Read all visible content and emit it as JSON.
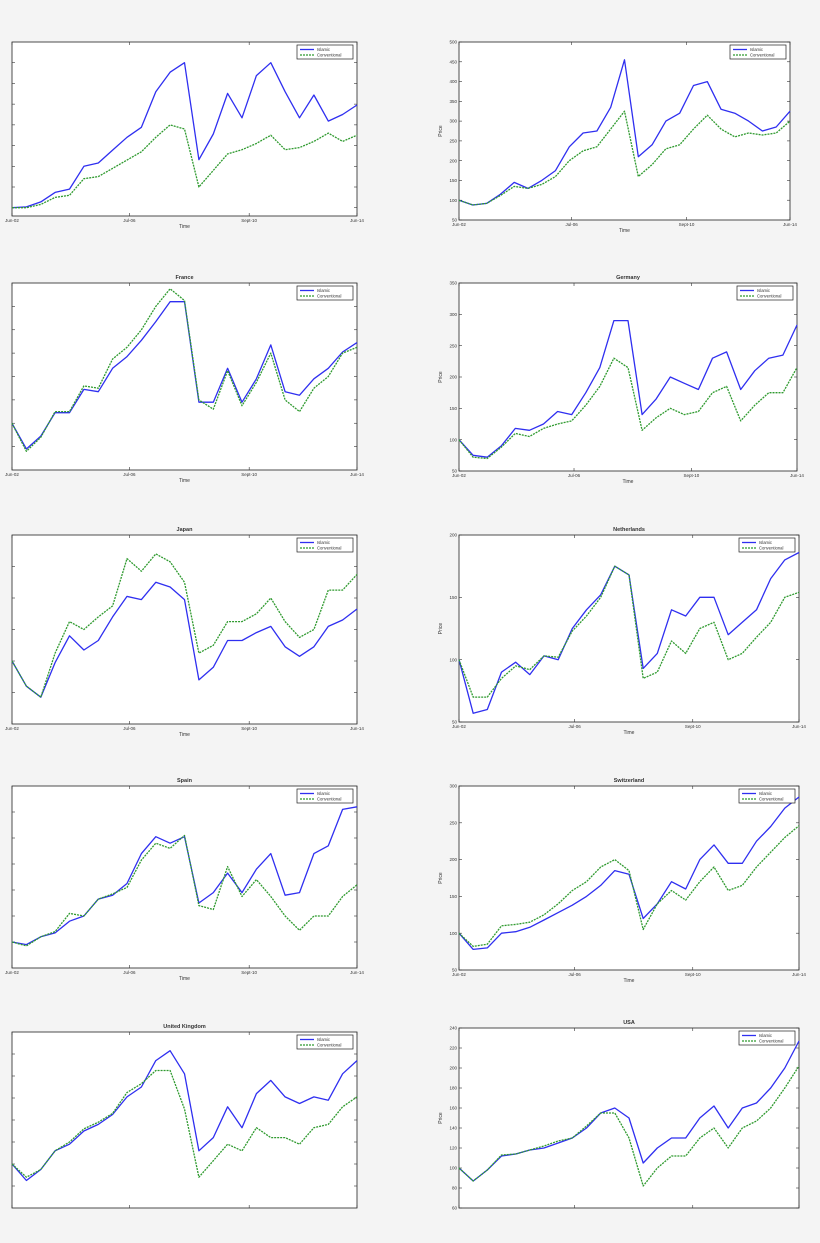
{
  "colors": {
    "islamic": "#2f2ff0",
    "conventional": "#2f9a2f",
    "background": "#f4f4f4",
    "plot": "#ffffff"
  },
  "chart_data": [
    {
      "type": "line",
      "title": "",
      "xlabel": "Time",
      "ylabel": "",
      "x": [
        "Jun-02",
        "Dec-02",
        "Jun-03",
        "Dec-03",
        "Jun-04",
        "Dec-04",
        "Jun-05",
        "Dec-05",
        "Jun-06",
        "Dec-06",
        "Jun-07",
        "Dec-07",
        "Jun-08",
        "Dec-08",
        "Jun-09",
        "Dec-09",
        "Jun-10",
        "Dec-10",
        "Jun-11",
        "Dec-11",
        "Jun-12",
        "Dec-12",
        "Jun-13",
        "Dec-13",
        "Jun-14"
      ],
      "xticks": [
        "Jun-02",
        "Jul-06",
        "Sept-10",
        "Jun-14"
      ],
      "xtick_labels_shown": true,
      "ylim": [
        80,
        500
      ],
      "yticks": [
        100,
        150,
        200,
        250,
        300,
        350,
        400,
        450
      ],
      "ytick_labels_shown": false,
      "legend": "top-right",
      "series": [
        {
          "name": "Islamic",
          "values": [
            100,
            102,
            114,
            137,
            145,
            200,
            208,
            239,
            270,
            294,
            380,
            427,
            450,
            216,
            278,
            376,
            317,
            419,
            450,
            380,
            317,
            372,
            309,
            325,
            348
          ]
        },
        {
          "name": "Conventional",
          "values": [
            100,
            100,
            108,
            125,
            130,
            170,
            175,
            195,
            215,
            235,
            270,
            300,
            290,
            150,
            190,
            230,
            240,
            255,
            275,
            240,
            245,
            260,
            280,
            260,
            275
          ]
        }
      ]
    },
    {
      "type": "line",
      "title": "",
      "xlabel": "Time",
      "ylabel": "Price",
      "x": [
        "Jun-02",
        "Dec-02",
        "Jun-03",
        "Dec-03",
        "Jun-04",
        "Dec-04",
        "Jun-05",
        "Dec-05",
        "Jun-06",
        "Dec-06",
        "Jun-07",
        "Dec-07",
        "Jun-08",
        "Dec-08",
        "Jun-09",
        "Dec-09",
        "Jun-10",
        "Dec-10",
        "Jun-11",
        "Dec-11",
        "Jun-12",
        "Dec-12",
        "Jun-13",
        "Dec-13",
        "Jun-14"
      ],
      "xticks": [
        "Jun-02",
        "Jul-06",
        "Sept-10",
        "Jun-14"
      ],
      "xtick_labels_shown": true,
      "ylim": [
        50,
        500
      ],
      "yticks": [
        50,
        100,
        150,
        200,
        250,
        300,
        350,
        400,
        450,
        500
      ],
      "ytick_labels_shown": true,
      "legend": "top-right",
      "series": [
        {
          "name": "Islamic",
          "values": [
            100,
            88,
            92,
            115,
            145,
            130,
            150,
            175,
            235,
            270,
            275,
            335,
            455,
            210,
            240,
            300,
            320,
            390,
            400,
            330,
            320,
            300,
            275,
            285,
            325
          ]
        },
        {
          "name": "Conventional",
          "values": [
            100,
            88,
            92,
            112,
            135,
            130,
            140,
            160,
            200,
            225,
            235,
            280,
            325,
            160,
            190,
            230,
            240,
            280,
            315,
            280,
            260,
            270,
            265,
            270,
            300
          ]
        }
      ]
    },
    {
      "type": "line",
      "title": "France",
      "xlabel": "Time",
      "ylabel": "",
      "x": [
        "Jun-02",
        "Dec-02",
        "Jun-03",
        "Dec-03",
        "Jun-04",
        "Dec-04",
        "Jun-05",
        "Dec-05",
        "Jun-06",
        "Dec-06",
        "Jun-07",
        "Dec-07",
        "Jun-08",
        "Dec-08",
        "Jun-09",
        "Dec-09",
        "Jun-10",
        "Dec-10",
        "Jun-11",
        "Dec-11",
        "Jun-12",
        "Dec-12",
        "Jun-13",
        "Dec-13",
        "Jun-14"
      ],
      "xticks": [
        "Jun-02",
        "Jul-06",
        "Sept-10",
        "Jun-14"
      ],
      "xtick_labels_shown": true,
      "ylim": [
        60,
        220
      ],
      "yticks": [
        80,
        100,
        120,
        140,
        160,
        180,
        200
      ],
      "ytick_labels_shown": false,
      "legend": "top-right",
      "series": [
        {
          "name": "Islamic",
          "values": [
            100,
            78,
            89,
            109,
            109,
            129,
            127,
            147,
            157,
            171,
            187,
            204,
            204,
            118,
            118,
            147,
            118,
            138,
            167,
            127,
            124,
            138,
            147,
            161,
            169
          ]
        },
        {
          "name": "Conventional",
          "values": [
            100,
            76,
            88,
            110,
            110,
            132,
            130,
            155,
            165,
            180,
            200,
            215,
            205,
            120,
            112,
            145,
            115,
            135,
            160,
            120,
            110,
            130,
            140,
            160,
            165
          ]
        }
      ]
    },
    {
      "type": "line",
      "title": "Germany",
      "xlabel": "Time",
      "ylabel": "Price",
      "x": [
        "Jun-02",
        "Dec-02",
        "Jun-03",
        "Dec-03",
        "Jun-04",
        "Dec-04",
        "Jun-05",
        "Dec-05",
        "Jun-06",
        "Dec-06",
        "Jun-07",
        "Dec-07",
        "Jun-08",
        "Dec-08",
        "Jun-09",
        "Dec-09",
        "Jun-10",
        "Dec-10",
        "Jun-11",
        "Dec-11",
        "Jun-12",
        "Dec-12",
        "Jun-13",
        "Dec-13",
        "Jun-14"
      ],
      "xticks": [
        "Jun-02",
        "Jul-06",
        "Sept-10",
        "Jun-14"
      ],
      "xtick_labels_shown": true,
      "ylim": [
        50,
        350
      ],
      "yticks": [
        50,
        100,
        150,
        200,
        250,
        300,
        350
      ],
      "ytick_labels_shown": true,
      "legend": "top-right",
      "series": [
        {
          "name": "Islamic",
          "values": [
            100,
            75,
            72,
            90,
            118,
            115,
            125,
            145,
            140,
            175,
            215,
            290,
            290,
            140,
            165,
            200,
            190,
            180,
            230,
            240,
            180,
            210,
            230,
            235,
            283
          ]
        },
        {
          "name": "Conventional",
          "values": [
            100,
            72,
            70,
            88,
            110,
            105,
            118,
            125,
            130,
            155,
            185,
            230,
            215,
            115,
            135,
            150,
            140,
            145,
            175,
            185,
            130,
            155,
            175,
            175,
            215
          ]
        }
      ]
    },
    {
      "type": "line",
      "title": "Japan",
      "xlabel": "Time",
      "ylabel": "",
      "x": [
        "Jun-02",
        "Dec-02",
        "Jun-03",
        "Dec-03",
        "Jun-04",
        "Dec-04",
        "Jun-05",
        "Dec-05",
        "Jun-06",
        "Dec-06",
        "Jun-07",
        "Dec-07",
        "Jun-08",
        "Dec-08",
        "Jun-09",
        "Dec-09",
        "Jun-10",
        "Dec-10",
        "Jun-11",
        "Dec-11",
        "Jun-12",
        "Dec-12",
        "Jun-13",
        "Dec-13",
        "Jun-14"
      ],
      "xticks": [
        "Jun-02",
        "Jul-06",
        "Sept-10",
        "Jun-14"
      ],
      "xtick_labels_shown": true,
      "ylim": [
        60,
        180
      ],
      "yticks": [
        80,
        100,
        120,
        140,
        160
      ],
      "ytick_labels_shown": false,
      "legend": "top-right",
      "series": [
        {
          "name": "Islamic",
          "values": [
            100,
            84,
            77,
            99,
            116,
            107,
            113,
            128,
            141,
            139,
            150,
            147,
            139,
            88,
            96,
            113,
            113,
            118,
            122,
            109,
            103,
            109,
            122,
            126,
            133
          ]
        },
        {
          "name": "Conventional",
          "values": [
            100,
            84,
            77,
            105,
            125,
            120,
            128,
            135,
            165,
            157,
            168,
            163,
            150,
            105,
            110,
            125,
            125,
            130,
            140,
            125,
            115,
            120,
            145,
            145,
            155
          ]
        }
      ]
    },
    {
      "type": "line",
      "title": "Netherlands",
      "xlabel": "Time",
      "ylabel": "Price",
      "x": [
        "Jun-02",
        "Dec-02",
        "Jun-03",
        "Dec-03",
        "Jun-04",
        "Dec-04",
        "Jun-05",
        "Dec-05",
        "Jun-06",
        "Dec-06",
        "Jun-07",
        "Dec-07",
        "Jun-08",
        "Dec-08",
        "Jun-09",
        "Dec-09",
        "Jun-10",
        "Dec-10",
        "Jun-11",
        "Dec-11",
        "Jun-12",
        "Dec-12",
        "Jun-13",
        "Dec-13",
        "Jun-14"
      ],
      "xticks": [
        "Jun-02",
        "Jul-06",
        "Sept-10",
        "Jun-14"
      ],
      "xtick_labels_shown": true,
      "ylim": [
        50,
        200
      ],
      "yticks": [
        50,
        100,
        150,
        200
      ],
      "ytick_labels_shown": true,
      "legend": "top-right",
      "series": [
        {
          "name": "Islamic",
          "values": [
            100,
            57,
            60,
            90,
            98,
            88,
            103,
            100,
            125,
            140,
            152,
            175,
            168,
            93,
            105,
            140,
            135,
            150,
            150,
            120,
            130,
            140,
            165,
            180,
            186
          ]
        },
        {
          "name": "Conventional",
          "values": [
            100,
            70,
            70,
            85,
            95,
            92,
            103,
            102,
            123,
            135,
            150,
            175,
            168,
            85,
            90,
            115,
            105,
            125,
            130,
            100,
            105,
            118,
            130,
            150,
            154
          ]
        }
      ]
    },
    {
      "type": "line",
      "title": "Spain",
      "xlabel": "Time",
      "ylabel": "",
      "x": [
        "Jun-02",
        "Dec-02",
        "Jun-03",
        "Dec-03",
        "Jun-04",
        "Dec-04",
        "Jun-05",
        "Dec-05",
        "Jun-06",
        "Dec-06",
        "Jun-07",
        "Dec-07",
        "Jun-08",
        "Dec-08",
        "Jun-09",
        "Dec-09",
        "Jun-10",
        "Dec-10",
        "Jun-11",
        "Dec-11",
        "Jun-12",
        "Dec-12",
        "Jun-13",
        "Dec-13",
        "Jun-14"
      ],
      "xticks": [
        "Jun-02",
        "Jul-06",
        "Sept-10",
        "Jun-14"
      ],
      "xtick_labels_shown": true,
      "ylim": [
        80,
        220
      ],
      "yticks": [
        100,
        120,
        140,
        160,
        180,
        200
      ],
      "ytick_labels_shown": false,
      "legend": "top-right",
      "series": [
        {
          "name": "Islamic",
          "values": [
            100,
            98,
            104,
            107,
            116,
            120,
            133,
            136,
            145,
            168,
            181,
            176,
            181,
            130,
            138,
            153,
            138,
            156,
            168,
            136,
            138,
            168,
            174,
            202,
            204
          ]
        },
        {
          "name": "Conventional",
          "values": [
            100,
            97,
            104,
            108,
            122,
            120,
            133,
            137,
            142,
            163,
            176,
            172,
            182,
            128,
            125,
            158,
            135,
            148,
            135,
            120,
            109,
            120,
            120,
            135,
            144
          ]
        }
      ]
    },
    {
      "type": "line",
      "title": "Switzerland",
      "xlabel": "Time",
      "ylabel": "Price",
      "x": [
        "Jun-02",
        "Dec-02",
        "Jun-03",
        "Dec-03",
        "Jun-04",
        "Dec-04",
        "Jun-05",
        "Dec-05",
        "Jun-06",
        "Dec-06",
        "Jun-07",
        "Dec-07",
        "Jun-08",
        "Dec-08",
        "Jun-09",
        "Dec-09",
        "Jun-10",
        "Dec-10",
        "Jun-11",
        "Dec-11",
        "Jun-12",
        "Dec-12",
        "Jun-13",
        "Dec-13",
        "Jun-14"
      ],
      "xticks": [
        "Jun-02",
        "Jul-06",
        "Sept-10",
        "Jun-14"
      ],
      "xtick_labels_shown": true,
      "ylim": [
        50,
        300
      ],
      "yticks": [
        50,
        100,
        150,
        200,
        250,
        300
      ],
      "ytick_labels_shown": true,
      "legend": "top-right",
      "series": [
        {
          "name": "Islamic",
          "values": [
            100,
            78,
            80,
            100,
            102,
            108,
            118,
            128,
            138,
            150,
            165,
            185,
            180,
            120,
            140,
            170,
            160,
            200,
            220,
            195,
            195,
            225,
            245,
            270,
            285
          ]
        },
        {
          "name": "Conventional",
          "values": [
            100,
            82,
            85,
            110,
            112,
            115,
            125,
            140,
            158,
            170,
            190,
            200,
            185,
            105,
            140,
            158,
            145,
            170,
            190,
            158,
            165,
            190,
            210,
            230,
            246
          ]
        }
      ]
    },
    {
      "type": "line",
      "title": "United Kingdom",
      "xlabel": "",
      "ylabel": "",
      "x": [
        "Jun-02",
        "Dec-02",
        "Jun-03",
        "Dec-03",
        "Jun-04",
        "Dec-04",
        "Jun-05",
        "Dec-05",
        "Jun-06",
        "Dec-06",
        "Jun-07",
        "Dec-07",
        "Jun-08",
        "Dec-08",
        "Jun-09",
        "Dec-09",
        "Jun-10",
        "Dec-10",
        "Jun-11",
        "Dec-11",
        "Jun-12",
        "Dec-12",
        "Jun-13",
        "Dec-13",
        "Jun-14"
      ],
      "xticks": [
        "Jun-02",
        "Jul-06",
        "Sept-10",
        "Jun-14"
      ],
      "xtick_labels_shown": false,
      "ylim": [
        60,
        220
      ],
      "yticks": [
        80,
        100,
        120,
        140,
        160,
        180,
        200
      ],
      "ytick_labels_shown": false,
      "legend": "top-right",
      "series": [
        {
          "name": "Islamic",
          "values": [
            100,
            85,
            95,
            112,
            118,
            130,
            136,
            145,
            161,
            170,
            194,
            203,
            182,
            112,
            124,
            152,
            133,
            164,
            176,
            161,
            155,
            161,
            158,
            182,
            194
          ]
        },
        {
          "name": "Conventional",
          "values": [
            100,
            88,
            95,
            112,
            120,
            132,
            138,
            146,
            165,
            173,
            185,
            185,
            150,
            88,
            103,
            118,
            112,
            133,
            124,
            124,
            118,
            133,
            136,
            152,
            161
          ]
        }
      ]
    },
    {
      "type": "line",
      "title": "USA",
      "xlabel": "",
      "ylabel": "Price",
      "x": [
        "Jun-02",
        "Dec-02",
        "Jun-03",
        "Dec-03",
        "Jun-04",
        "Dec-04",
        "Jun-05",
        "Dec-05",
        "Jun-06",
        "Dec-06",
        "Jun-07",
        "Dec-07",
        "Jun-08",
        "Dec-08",
        "Jun-09",
        "Dec-09",
        "Jun-10",
        "Dec-10",
        "Jun-11",
        "Dec-11",
        "Jun-12",
        "Dec-12",
        "Jun-13",
        "Dec-13",
        "Jun-14"
      ],
      "xticks": [
        "Jun-02",
        "Jul-06",
        "Sept-10",
        "Jun-14"
      ],
      "xtick_labels_shown": false,
      "ylim": [
        60,
        240
      ],
      "yticks": [
        60,
        80,
        100,
        120,
        140,
        160,
        180,
        200,
        220,
        240
      ],
      "ytick_labels_shown": true,
      "legend": "top-right",
      "series": [
        {
          "name": "Islamic",
          "values": [
            100,
            87,
            98,
            112,
            114,
            118,
            120,
            125,
            130,
            140,
            155,
            160,
            150,
            105,
            120,
            130,
            130,
            150,
            162,
            140,
            160,
            165,
            180,
            200,
            227
          ]
        },
        {
          "name": "Conventional",
          "values": [
            100,
            87,
            98,
            113,
            114,
            118,
            122,
            127,
            130,
            142,
            155,
            155,
            130,
            82,
            100,
            112,
            112,
            130,
            140,
            120,
            140,
            147,
            160,
            180,
            202
          ]
        }
      ]
    }
  ]
}
